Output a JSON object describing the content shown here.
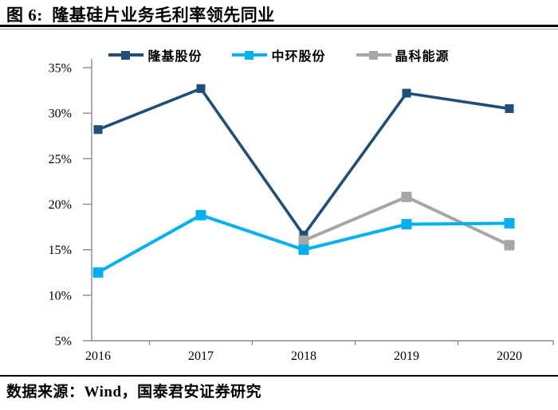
{
  "header": {
    "title": "图 6:  隆基硅片业务毛利率领先同业"
  },
  "footer": {
    "source": "数据来源：Wind，国泰君安证券研究"
  },
  "colors": {
    "series_longi": "#1F4E79",
    "series_zhonghuan": "#00B0F0",
    "series_jinko": "#A6A6A6",
    "axis": "#8a8a8a",
    "title_rule": "#000000",
    "text": "#000000",
    "background": "#ffffff"
  },
  "chart_data": {
    "type": "line",
    "title": "图 6: 隆基硅片业务毛利率领先同业",
    "categories": [
      "2016",
      "2017",
      "2018",
      "2019",
      "2020"
    ],
    "series": [
      {
        "name": "隆基股份",
        "color": "#1F4E79",
        "values": [
          28.2,
          32.7,
          16.6,
          32.2,
          30.5
        ]
      },
      {
        "name": "中环股份",
        "color": "#00B0F0",
        "values": [
          12.5,
          18.8,
          15.0,
          17.8,
          17.9
        ]
      },
      {
        "name": "晶科能源",
        "color": "#A6A6A6",
        "values": [
          null,
          null,
          16.0,
          20.8,
          15.5
        ]
      }
    ],
    "xlabel": "",
    "ylabel": "",
    "ylim": [
      5,
      35
    ],
    "ytick_step": 5,
    "ytick_labels": [
      "5%",
      "10%",
      "15%",
      "20%",
      "25%",
      "30%",
      "35%"
    ],
    "legend_position": "top",
    "grid": false,
    "marker": "square",
    "source_note": "数据来源：Wind，国泰君安证券研究"
  }
}
